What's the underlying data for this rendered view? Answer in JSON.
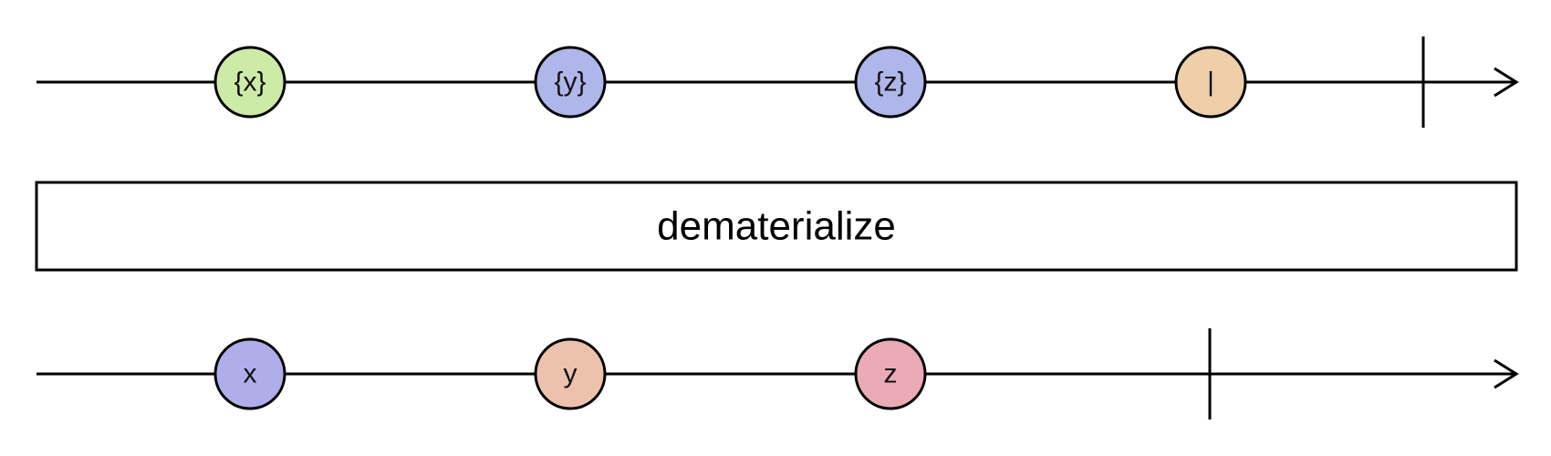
{
  "operator": {
    "label": "dematerialize"
  },
  "source_stream": {
    "marbles": [
      {
        "label": "{x}",
        "color": "#cdeaa6"
      },
      {
        "label": "{y}",
        "color": "#aeb6ea"
      },
      {
        "label": "{z}",
        "color": "#aeb6ea"
      },
      {
        "label": "|",
        "color": "#eecfaa"
      }
    ],
    "completes": true
  },
  "result_stream": {
    "marbles": [
      {
        "label": "x",
        "color": "#b0aeea"
      },
      {
        "label": "y",
        "color": "#ecc2ad"
      },
      {
        "label": "z",
        "color": "#eaabb6"
      }
    ],
    "completes": true
  }
}
